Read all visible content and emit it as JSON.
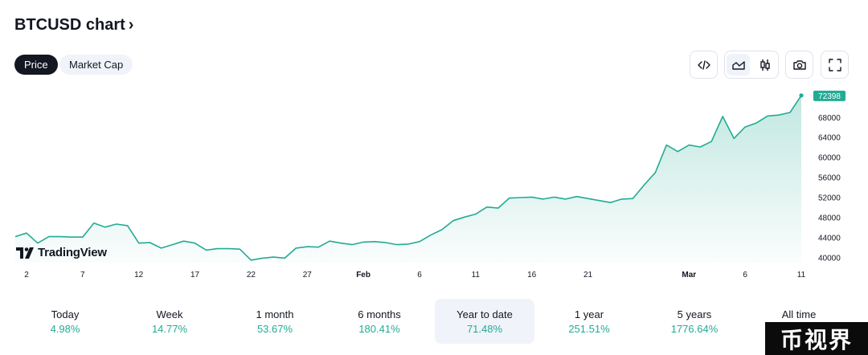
{
  "header": {
    "title": "BTCUSD chart",
    "chevron": "›"
  },
  "tabs": [
    {
      "label": "Price",
      "active": true
    },
    {
      "label": "Market Cap",
      "active": false
    }
  ],
  "toolbar": {
    "icons": [
      "embed-code-icon",
      "area-chart-icon",
      "candlestick-icon",
      "camera-icon",
      "fullscreen-icon"
    ],
    "selected": "area-chart-icon"
  },
  "branding": {
    "logo_text": "TradingView"
  },
  "periods": [
    {
      "label": "Today",
      "value": "4.98%"
    },
    {
      "label": "Week",
      "value": "14.77%"
    },
    {
      "label": "1 month",
      "value": "53.67%"
    },
    {
      "label": "6 months",
      "value": "180.41%"
    },
    {
      "label": "Year to date",
      "value": "71.48%",
      "selected": true
    },
    {
      "label": "1 year",
      "value": "251.51%"
    },
    {
      "label": "5 years",
      "value": "1776.64%"
    },
    {
      "label": "All time",
      "value": ""
    }
  ],
  "watermark": {
    "text": "币视界"
  },
  "colors": {
    "line": "#22ab94",
    "positive": "#22ab94",
    "price_label_bg": "#22ab94",
    "dark": "#131722"
  },
  "chart_data": {
    "type": "area",
    "last_price_label": "72398",
    "y_ticks": [
      "68000",
      "64000",
      "60000",
      "56000",
      "52000",
      "48000",
      "44000",
      "40000"
    ],
    "ylim": [
      39000,
      73500
    ],
    "x_ticks": [
      {
        "label": "2",
        "index": 1
      },
      {
        "label": "7",
        "index": 6
      },
      {
        "label": "12",
        "index": 11
      },
      {
        "label": "17",
        "index": 16
      },
      {
        "label": "22",
        "index": 21
      },
      {
        "label": "27",
        "index": 26
      },
      {
        "label": "Feb",
        "index": 31,
        "bold": true
      },
      {
        "label": "6",
        "index": 36
      },
      {
        "label": "11",
        "index": 41
      },
      {
        "label": "16",
        "index": 46
      },
      {
        "label": "21",
        "index": 51
      },
      {
        "label": "Mar",
        "index": 60,
        "bold": true
      },
      {
        "label": "6",
        "index": 65
      },
      {
        "label": "11",
        "index": 70
      }
    ],
    "series": [
      {
        "values": [
          44200,
          44900,
          42900,
          44200,
          44200,
          44100,
          44100,
          46900,
          46100,
          46700,
          46400,
          42900,
          43000,
          41900,
          42600,
          43300,
          42900,
          41500,
          41800,
          41800,
          41700,
          39500,
          39900,
          40100,
          39900,
          41900,
          42200,
          42100,
          43300,
          42900,
          42600,
          43100,
          43200,
          43000,
          42600,
          42700,
          43200,
          44500,
          45600,
          47400,
          48100,
          48700,
          50100,
          49900,
          51900,
          52000,
          52100,
          51700,
          52100,
          51700,
          52200,
          51800,
          51400,
          51000,
          51700,
          51800,
          54500,
          57000,
          62500,
          61200,
          62500,
          62100,
          63200,
          68200,
          63800,
          66100,
          66900,
          68300,
          68500,
          69000,
          72398
        ]
      }
    ]
  }
}
